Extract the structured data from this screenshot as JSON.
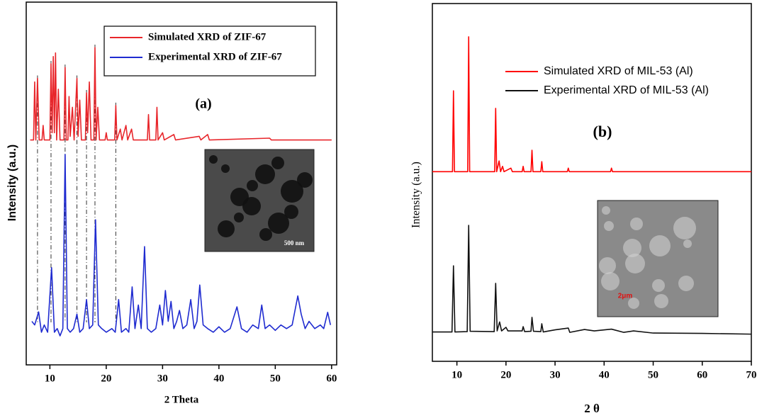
{
  "chart_data": [
    {
      "type": "line",
      "title": "(a)",
      "xlabel": "2 Theta",
      "ylabel": "Intensity (a.u.)",
      "xlim": [
        5.8,
        60.9
      ],
      "xticks": [
        10,
        20,
        30,
        40,
        50,
        60
      ],
      "ylim": [
        0,
        100
      ],
      "legend": "upper right",
      "inset_label": "500 nm",
      "series": [
        {
          "name": "Simulated XRD of ZIF-67",
          "color": "#e8262b",
          "x": [
            6.5,
            7.1,
            7.3,
            7.5,
            7.8,
            8.1,
            8.6,
            8.8,
            9.0,
            10.0,
            10.2,
            10.4,
            10.6,
            10.8,
            11.0,
            11.2,
            11.5,
            11.8,
            12.5,
            12.7,
            12.9,
            13.2,
            13.4,
            13.6,
            14.0,
            14.3,
            14.8,
            15.0,
            15.3,
            15.6,
            16.3,
            16.5,
            16.7,
            17.0,
            17.3,
            17.8,
            18.0,
            18.2,
            18.5,
            18.8,
            19.8,
            20.0,
            20.2,
            21.5,
            21.7,
            21.9,
            22.5,
            22.8,
            23.5,
            23.8,
            24.5,
            24.8,
            27.3,
            27.5,
            27.7,
            28.8,
            29.0,
            29.2,
            30.0,
            30.3,
            32.0,
            32.3,
            36.5,
            36.8,
            38.0,
            38.3,
            49.0,
            49.3,
            60.0
          ],
          "values": [
            62,
            62,
            78,
            62,
            79,
            62,
            62,
            66,
            62,
            62,
            83,
            64,
            85,
            64,
            86,
            62,
            76,
            62,
            62,
            82,
            62,
            62,
            74,
            63,
            71,
            62,
            79,
            63,
            73,
            62,
            62,
            75,
            64,
            78,
            62,
            62,
            87.5,
            62,
            71,
            62,
            62,
            64,
            62,
            62,
            71.5,
            62,
            65,
            62,
            66,
            62,
            65,
            62,
            62,
            69,
            62,
            62,
            71,
            62,
            64,
            62,
            63.5,
            62,
            63,
            62,
            63.5,
            62,
            62.5,
            62,
            62
          ]
        },
        {
          "name": "Experimental XRD of ZIF-67",
          "color": "#1f2bd0",
          "x": [
            6.8,
            7.3,
            8.0,
            8.5,
            9.0,
            9.6,
            10.3,
            10.8,
            11.3,
            11.8,
            12.3,
            12.7,
            13.1,
            13.6,
            14.2,
            14.8,
            15.3,
            15.9,
            16.5,
            17.0,
            17.6,
            18.1,
            18.6,
            19.2,
            20.0,
            21.0,
            21.6,
            22.2,
            22.7,
            23.5,
            24.0,
            24.6,
            25.1,
            25.7,
            26.2,
            26.8,
            27.3,
            28.0,
            28.8,
            29.5,
            30.0,
            30.5,
            31.0,
            31.5,
            32.0,
            32.5,
            33.0,
            33.6,
            34.3,
            35.0,
            35.6,
            36.1,
            36.6,
            37.2,
            38.0,
            39.0,
            40.0,
            41.0,
            42.0,
            43.2,
            44.0,
            45.0,
            46.0,
            47.0,
            47.6,
            48.2,
            49.0,
            50.0,
            51.0,
            52.0,
            53.0,
            54.0,
            54.6,
            55.3,
            56.0,
            57.0,
            58.0,
            58.6,
            59.3,
            59.8
          ],
          "values": [
            12,
            11,
            14.6,
            9,
            11,
            9,
            26.8,
            9,
            10,
            8,
            10,
            58,
            10,
            9,
            10,
            14,
            9,
            10,
            18,
            10,
            11,
            40,
            11,
            10,
            9,
            10,
            9,
            18,
            9,
            10,
            9,
            21.5,
            10,
            16.5,
            10,
            32.6,
            10,
            9,
            10,
            16.5,
            11,
            20.5,
            12,
            17.5,
            10,
            12,
            15,
            10,
            11,
            18,
            10,
            12,
            22,
            11,
            10,
            9,
            10.5,
            9,
            10,
            16,
            10,
            9,
            11,
            10,
            16.5,
            10,
            11,
            9.5,
            11,
            10,
            11,
            19,
            14,
            10,
            12,
            10,
            11,
            10,
            14.5,
            11
          ]
        }
      ]
    },
    {
      "type": "line",
      "title": "(b)",
      "xlabel": "2 θ",
      "ylabel": "Intensity (a.u.)",
      "xlim": [
        5,
        70
      ],
      "xticks": [
        10,
        20,
        30,
        40,
        50,
        60,
        70
      ],
      "ylim": [
        0,
        100
      ],
      "legend": "upper center",
      "inset_label": "2μm",
      "series": [
        {
          "name": "Simulated XRD of MIL-53 (Al)",
          "color": "#ff0000",
          "x": [
            5,
            9.1,
            9.3,
            9.5,
            12.2,
            12.4,
            12.6,
            17.7,
            17.9,
            18.1,
            18.6,
            18.9,
            19.3,
            19.6,
            21,
            21.3,
            23.3,
            23.5,
            23.7,
            25.1,
            25.3,
            25.5,
            27.1,
            27.3,
            27.5,
            32.5,
            32.7,
            32.9,
            41.3,
            41.5,
            41.7,
            70
          ],
          "values": [
            53,
            53,
            75.6,
            53,
            53,
            90.7,
            53,
            53,
            70.7,
            53,
            56,
            53,
            54.5,
            53,
            54,
            53,
            53,
            54.5,
            53,
            53,
            59,
            53,
            53,
            55.8,
            53,
            53,
            54,
            53,
            53,
            54,
            53,
            53
          ]
        },
        {
          "name": "Experimental XRD of MIL-53 (Al)",
          "color": "#111111",
          "x": [
            5,
            9.0,
            9.3,
            9.6,
            12.1,
            12.4,
            12.7,
            17.6,
            17.9,
            18.2,
            18.7,
            19.1,
            20.0,
            20.4,
            23.3,
            23.5,
            23.8,
            25.1,
            25.3,
            25.6,
            27.1,
            27.3,
            27.6,
            30.0,
            32.7,
            33.0,
            36.0,
            38,
            41.5,
            44,
            46,
            50,
            60,
            70
          ],
          "values": [
            8.2,
            8.2,
            26.7,
            8.2,
            8.3,
            38,
            8.4,
            8.3,
            21.8,
            8.5,
            11,
            8.5,
            9.5,
            8.5,
            8.5,
            9.7,
            8.3,
            8.4,
            12.3,
            8.4,
            8.3,
            10.5,
            8.2,
            8.8,
            9.3,
            8.1,
            8.9,
            8.5,
            9,
            8.1,
            8.5,
            7.9,
            7.8,
            7.6
          ]
        }
      ]
    }
  ]
}
